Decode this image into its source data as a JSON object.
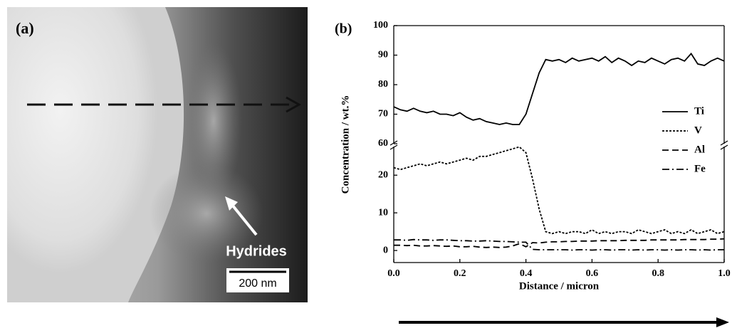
{
  "image_panel": {
    "panel_label": "(a)",
    "annotation": "Hydrides",
    "scale_bar": "200 nm"
  },
  "chart_data": {
    "type": "line",
    "panel_label": "(b)",
    "xlabel": "Distance / micron",
    "ylabel": "Concentration / wt.%",
    "x": [
      0,
      0.02,
      0.04,
      0.06,
      0.08,
      0.1,
      0.12,
      0.14,
      0.16,
      0.18,
      0.2,
      0.22,
      0.24,
      0.26,
      0.28,
      0.3,
      0.32,
      0.34,
      0.36,
      0.38,
      0.4,
      0.42,
      0.44,
      0.46,
      0.48,
      0.5,
      0.52,
      0.54,
      0.56,
      0.58,
      0.6,
      0.62,
      0.64,
      0.66,
      0.68,
      0.7,
      0.72,
      0.74,
      0.76,
      0.78,
      0.8,
      0.82,
      0.84,
      0.86,
      0.88,
      0.9,
      0.92,
      0.94,
      0.96,
      0.98,
      1.0
    ],
    "series": [
      {
        "name": "Ti",
        "color": "#000000",
        "style": "solid",
        "axis": "y2",
        "values": [
          72.5,
          71.5,
          71,
          72,
          71,
          70.5,
          71,
          70,
          70,
          69.5,
          70.5,
          69,
          68,
          68.5,
          67.5,
          67,
          66.5,
          67,
          66.5,
          66.5,
          70,
          77,
          84,
          88.5,
          88,
          88.5,
          87.5,
          89,
          88,
          88.5,
          89,
          88,
          89.5,
          87.5,
          89,
          88,
          86.5,
          88,
          87.5,
          89,
          88,
          87,
          88.5,
          89,
          88,
          90.5,
          87,
          86.5,
          88,
          89,
          88
        ]
      },
      {
        "name": "V",
        "color": "#000000",
        "style": "dotted",
        "values": [
          22,
          21.5,
          22,
          22.5,
          23,
          22.5,
          23,
          23.5,
          23,
          23.5,
          24,
          24.5,
          24,
          25,
          25,
          25.5,
          26,
          26.5,
          27,
          27.5,
          26,
          19,
          11,
          5,
          4.5,
          5,
          4.5,
          5,
          5,
          4.5,
          5.5,
          4.5,
          5,
          4.5,
          5,
          5,
          4.5,
          5.5,
          5,
          4.5,
          5,
          5.5,
          4.5,
          5,
          4.5,
          5.5,
          4.5,
          5,
          5.5,
          4.5,
          5
        ]
      },
      {
        "name": "Al",
        "color": "#000000",
        "style": "dashed",
        "values": [
          1.4,
          1.4,
          1.3,
          1.4,
          1.2,
          1.2,
          1.3,
          1.2,
          1.1,
          1.2,
          1.0,
          1.0,
          1.1,
          0.9,
          0.8,
          0.9,
          0.8,
          0.9,
          1.2,
          1.8,
          1.0,
          2.1,
          2.0,
          2.2,
          2.3,
          2.3,
          2.4,
          2.4,
          2.5,
          2.5,
          2.5,
          2.6,
          2.6,
          2.6,
          2.6,
          2.7,
          2.7,
          2.7,
          2.7,
          2.8,
          2.8,
          2.8,
          2.8,
          2.8,
          2.9,
          2.9,
          2.9,
          2.9,
          3.0,
          3.0,
          3.1
        ]
      },
      {
        "name": "Fe",
        "color": "#000000",
        "style": "dashdot",
        "values": [
          2.8,
          2.8,
          2.7,
          2.9,
          2.8,
          2.8,
          2.7,
          2.8,
          2.8,
          2.7,
          2.6,
          2.6,
          2.5,
          2.5,
          2.6,
          2.5,
          2.4,
          2.4,
          2.3,
          2.2,
          2.2,
          0.3,
          0.2,
          0.2,
          0.2,
          0.2,
          0.2,
          0.1,
          0.2,
          0.2,
          0.1,
          0.2,
          0.2,
          0.1,
          0.2,
          0.2,
          0.1,
          0.2,
          0.1,
          0.2,
          0.2,
          0.1,
          0.2,
          0.1,
          0.2,
          0.2,
          0.1,
          0.2,
          0.1,
          0.2,
          0.2
        ]
      }
    ],
    "xlim": [
      0,
      1
    ],
    "xticks": [
      {
        "value": 0,
        "label": "0.0"
      },
      {
        "value": 0.2,
        "label": "0.2"
      },
      {
        "value": 0.4,
        "label": "0.4"
      },
      {
        "value": 0.6,
        "label": "0.6"
      },
      {
        "value": 0.8,
        "label": "0.8"
      },
      {
        "value": 1,
        "label": "1.0"
      }
    ],
    "ylim": [
      -3.2,
      27.6
    ],
    "yticks": [
      0,
      10,
      20
    ],
    "y2lim": [
      60,
      100
    ],
    "y2ticks": [
      60,
      70,
      80,
      90,
      100
    ],
    "grid": false,
    "legend": "right"
  }
}
